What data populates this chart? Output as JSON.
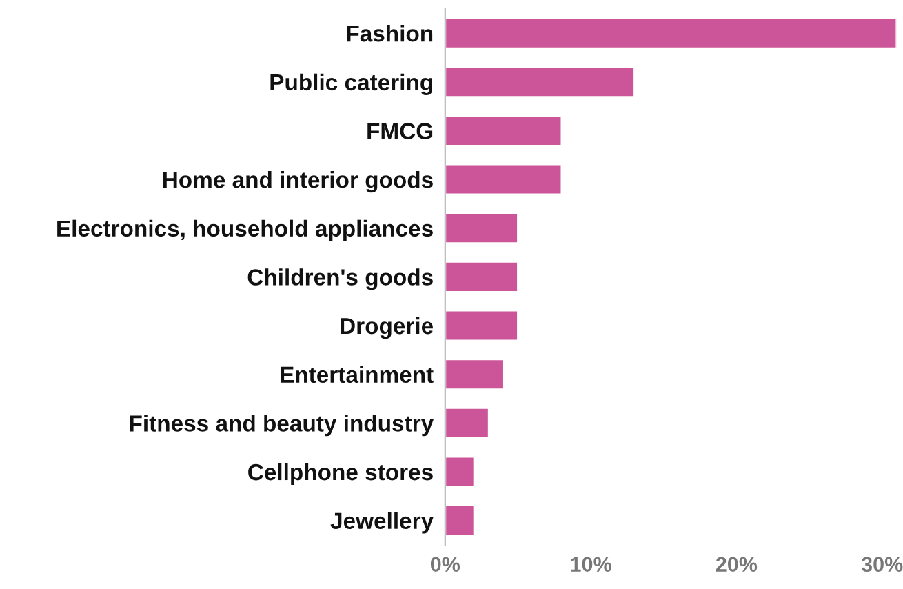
{
  "chart_data": {
    "type": "bar",
    "orientation": "horizontal",
    "categories": [
      "Fashion",
      "Public catering",
      "FMCG",
      "Home and interior goods",
      "Electronics, household appliances",
      "Children's goods",
      "Drogerie",
      "Entertainment",
      "Fitness and beauty industry",
      "Cellphone stores",
      "Jewellery"
    ],
    "values": [
      31,
      13,
      8,
      8,
      5,
      5,
      5,
      4,
      3,
      2,
      2
    ],
    "color": "#cc5599",
    "xlim": [
      0,
      31
    ],
    "xticks": [
      {
        "value": 0,
        "label": "0%"
      },
      {
        "value": 10,
        "label": "10%"
      },
      {
        "value": 20,
        "label": "20%"
      },
      {
        "value": 30,
        "label": "30%"
      }
    ],
    "grid": false,
    "legend": false
  }
}
